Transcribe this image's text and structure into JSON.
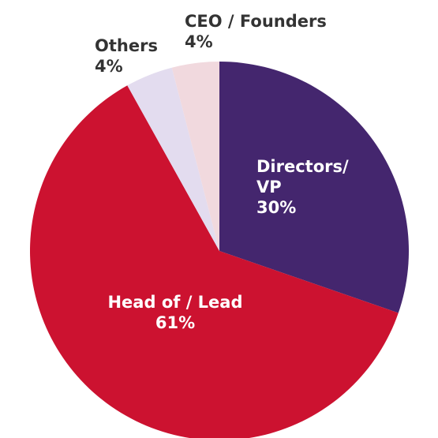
{
  "chart_data": {
    "type": "pie",
    "categories": [
      "Directors/ VP",
      "Head of / Lead",
      "Others",
      "CEO / Founders"
    ],
    "values": [
      30,
      61,
      4,
      4
    ],
    "value_labels": [
      "30%",
      "61%",
      "4%",
      "4%"
    ],
    "colors": [
      "#44266e",
      "#cc1230",
      "#e3dcef",
      "#f1d9de"
    ]
  }
}
